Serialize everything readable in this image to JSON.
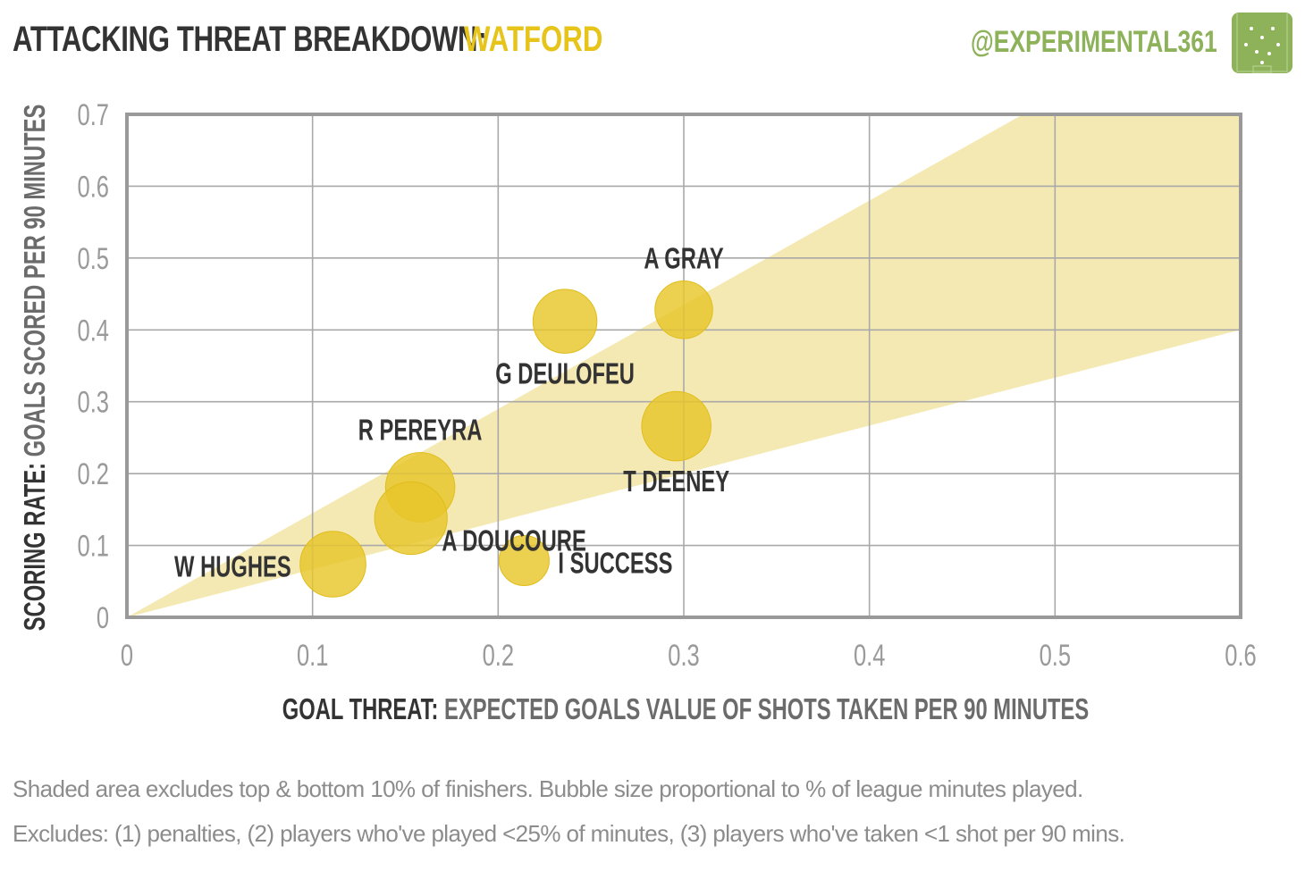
{
  "header": {
    "title": "ATTACKING THREAT BREAKDOWN:",
    "team": "WATFORD",
    "brand": "@EXPERIMENTAL361"
  },
  "colors": {
    "accent": "#e6c419",
    "bubble": "#e8c62a",
    "band": "#f5e9b3",
    "brand": "#8db25a",
    "frame": "#999999",
    "grid": "#a9a9a9",
    "tick": "#9a9a9a",
    "label": "#333333"
  },
  "chart_data": {
    "type": "scatter",
    "xlabel_bold": "GOAL THREAT:",
    "xlabel": "EXPECTED GOALS VALUE OF SHOTS TAKEN PER 90 MINUTES",
    "ylabel_bold": "SCORING RATE:",
    "ylabel": "GOALS SCORED PER 90 MINUTES",
    "xlim": [
      0,
      0.6
    ],
    "ylim": [
      0,
      0.7
    ],
    "x_ticks": [
      "0",
      "0.1",
      "0.2",
      "0.3",
      "0.4",
      "0.5",
      "0.6"
    ],
    "y_ticks": [
      "0",
      "0.1",
      "0.2",
      "0.3",
      "0.4",
      "0.5",
      "0.6",
      "0.7"
    ],
    "grid": true,
    "band": {
      "description_shown": false,
      "upper_slope": 1.45,
      "lower_slope": 0.667
    },
    "points": [
      {
        "name": "A GRAY",
        "x": 0.3,
        "y": 0.428,
        "minutes_share": 0.4,
        "label_pos": "above"
      },
      {
        "name": "G DEULOFEU",
        "x": 0.236,
        "y": 0.412,
        "minutes_share": 0.55,
        "label_pos": "below"
      },
      {
        "name": "T DEENEY",
        "x": 0.296,
        "y": 0.266,
        "minutes_share": 0.7,
        "label_pos": "below"
      },
      {
        "name": "R PEREYRA",
        "x": 0.158,
        "y": 0.181,
        "minutes_share": 0.7,
        "label_pos": "above"
      },
      {
        "name": "A DOUCOURE",
        "x": 0.153,
        "y": 0.138,
        "minutes_share": 0.8,
        "label_pos": "below-right"
      },
      {
        "name": "W HUGHES",
        "x": 0.111,
        "y": 0.074,
        "minutes_share": 0.6,
        "label_pos": "left"
      },
      {
        "name": "I SUCCESS",
        "x": 0.214,
        "y": 0.079,
        "minutes_share": 0.25,
        "label_pos": "right"
      }
    ]
  },
  "footnotes": {
    "line1": "Shaded area excludes top & bottom  10% of finishers. Bubble size proportional to % of league minutes played.",
    "line2": "Excludes: (1) penalties, (2) players who've played <25% of minutes, (3) players who've taken <1 shot per 90 mins."
  }
}
